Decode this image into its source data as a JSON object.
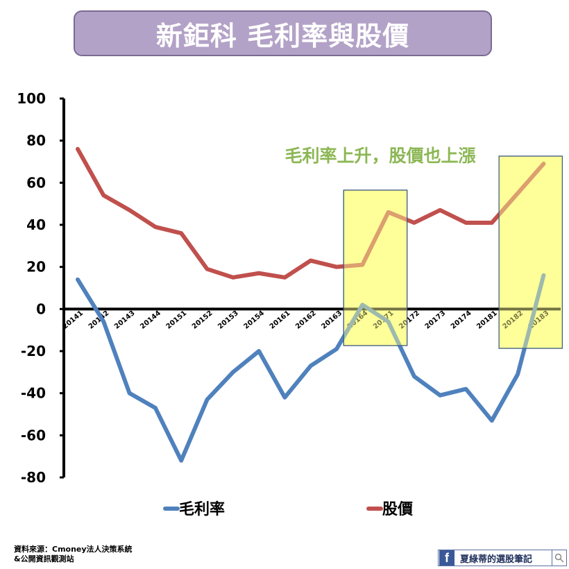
{
  "title": "新鉅科 毛利率與股價",
  "annotation": "毛利率上升，股價也上漲",
  "source": {
    "line1": "資料來源：Cmoney法人決策系統",
    "line2": "&公開資訊觀測站"
  },
  "footer": {
    "brand": "夏綠蒂的選股筆記",
    "fb_icon": "f",
    "icons": [
      "facebook-icon",
      "search-icon"
    ]
  },
  "colors": {
    "margin": "#4f81bd",
    "price": "#c0504d",
    "highlight_fill": "#ffff99",
    "highlight_border": "#3e5b7c",
    "annotation": "#8cb755",
    "title_bg": "#b3a2c7"
  },
  "chart_data": {
    "type": "line",
    "categories": [
      "20141",
      "20142",
      "20143",
      "20144",
      "20151",
      "20152",
      "20153",
      "20154",
      "20161",
      "20162",
      "20163",
      "20164",
      "20171",
      "20172",
      "20173",
      "20174",
      "20181",
      "20182",
      "20183"
    ],
    "series": [
      {
        "name": "毛利率",
        "values": [
          14,
          -6,
          -40,
          -47,
          -72,
          -43,
          -30,
          -20,
          -42,
          -27,
          -19,
          2,
          -6,
          -32,
          -41,
          -38,
          -53,
          -31,
          16
        ]
      },
      {
        "name": "股價",
        "values": [
          76,
          54,
          47,
          39,
          36,
          19,
          15,
          17,
          15,
          23,
          20,
          21,
          46,
          41,
          47,
          41,
          41,
          55,
          69
        ]
      }
    ],
    "ylim": [
      -80,
      100
    ],
    "yticks": [
      "100",
      "80",
      "60",
      "40",
      "20",
      "0",
      "-20",
      "-40",
      "-60",
      "-80"
    ],
    "legend_position": "bottom",
    "highlights": [
      {
        "from": "20164",
        "to": "20171"
      },
      {
        "from": "20182",
        "to": "20183"
      }
    ]
  }
}
